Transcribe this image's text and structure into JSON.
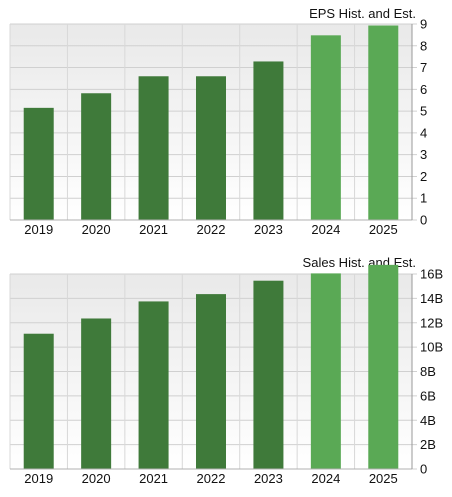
{
  "chart_data": [
    {
      "type": "bar",
      "title": "EPS Hist. and Est.",
      "categories": [
        "2019",
        "2020",
        "2021",
        "2022",
        "2023",
        "2024",
        "2025"
      ],
      "values": [
        5.15,
        5.82,
        6.6,
        6.6,
        7.28,
        8.48,
        8.93
      ],
      "estimate_from_index": 5,
      "yticks": [
        "0",
        "1",
        "2",
        "3",
        "4",
        "5",
        "6",
        "7",
        "8",
        "9"
      ],
      "ylim": [
        0,
        9
      ],
      "grid": true,
      "colors": {
        "historical": "#3f7a3a",
        "estimate": "#5aa955"
      }
    },
    {
      "type": "bar",
      "title": "Sales Hist. and Est.",
      "categories": [
        "2019",
        "2020",
        "2021",
        "2022",
        "2023",
        "2024",
        "2025"
      ],
      "values": [
        11.1,
        12.35,
        13.75,
        14.35,
        15.45,
        16.05,
        16.75
      ],
      "estimate_from_index": 5,
      "yticks": [
        "0",
        "2B",
        "4B",
        "6B",
        "8B",
        "10B",
        "12B",
        "14B",
        "16B"
      ],
      "ylim": [
        0,
        16
      ],
      "grid": true,
      "colors": {
        "historical": "#3f7a3a",
        "estimate": "#5aa955"
      }
    }
  ]
}
